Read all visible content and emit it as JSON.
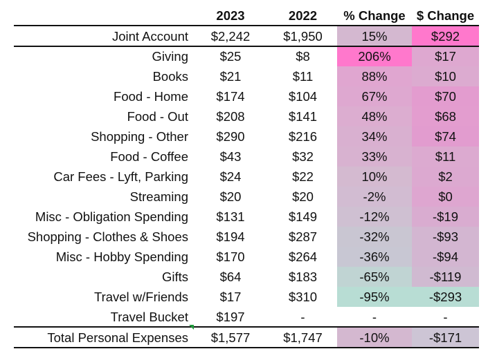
{
  "headers": {
    "y2023": "2023",
    "y2022": "2022",
    "pct": "% Change",
    "dollar": "$ Change"
  },
  "rows": [
    {
      "label": "Joint Account",
      "y2023": "$2,242",
      "y2022": "$1,950",
      "pct": "15%",
      "dollar": "$292",
      "pct_color": "#d4b8d0",
      "dollar_color": "#ff78cc"
    },
    {
      "label": "Giving",
      "y2023": "$25",
      "y2022": "$8",
      "pct": "206%",
      "dollar": "$17",
      "pct_color": "#ff78cc",
      "dollar_color": "#dea8d0"
    },
    {
      "label": "Books",
      "y2023": "$21",
      "y2022": "$11",
      "pct": "88%",
      "dollar": "$10",
      "pct_color": "#e0a6d0",
      "dollar_color": "#dcabd0"
    },
    {
      "label": "Food - Home",
      "y2023": "$174",
      "y2022": "$104",
      "pct": "67%",
      "dollar": "$70",
      "pct_color": "#dea8d0",
      "dollar_color": "#e39ccf"
    },
    {
      "label": "Food - Out",
      "y2023": "$208",
      "y2022": "$141",
      "pct": "48%",
      "dollar": "$68",
      "pct_color": "#dcadd0",
      "dollar_color": "#e39dcf"
    },
    {
      "label": "Shopping - Other",
      "y2023": "$290",
      "y2022": "$216",
      "pct": "34%",
      "dollar": "$74",
      "pct_color": "#d9b0d0",
      "dollar_color": "#e29ccf"
    },
    {
      "label": "Food - Coffee",
      "y2023": "$43",
      "y2022": "$32",
      "pct": "33%",
      "dollar": "$11",
      "pct_color": "#d8b2d0",
      "dollar_color": "#dcaad0"
    },
    {
      "label": "Car Fees - Lyft, Parking",
      "y2023": "$24",
      "y2022": "$22",
      "pct": "10%",
      "dollar": "$2",
      "pct_color": "#d4bad0",
      "dollar_color": "#dca9d0"
    },
    {
      "label": "Streaming",
      "y2023": "$20",
      "y2022": "$20",
      "pct": "-2%",
      "dollar": "$0",
      "pct_color": "#d2bcd2",
      "dollar_color": "#dea6d0"
    },
    {
      "label": "Misc - Obligation Spending",
      "y2023": "$131",
      "y2022": "$149",
      "pct": "-12%",
      "dollar": "-$19",
      "pct_color": "#cfc0d2",
      "dollar_color": "#d9acd0"
    },
    {
      "label": "Shopping - Clothes & Shoes",
      "y2023": "$194",
      "y2022": "$287",
      "pct": "-32%",
      "dollar": "-$93",
      "pct_color": "#c9c6d2",
      "dollar_color": "#d3b6d1"
    },
    {
      "label": "Misc - Hobby Spending",
      "y2023": "$170",
      "y2022": "$264",
      "pct": "-36%",
      "dollar": "-$94",
      "pct_color": "#c8c7d3",
      "dollar_color": "#d3b6d1"
    },
    {
      "label": "Gifts",
      "y2023": "$64",
      "y2022": "$183",
      "pct": "-65%",
      "dollar": "-$119",
      "pct_color": "#c0d4d3",
      "dollar_color": "#d0bad1"
    },
    {
      "label": "Travel w/Friends",
      "y2023": "$17",
      "y2022": "$310",
      "pct": "-95%",
      "dollar": "-$293",
      "pct_color": "#b8ddd4",
      "dollar_color": "#b8ddd4"
    },
    {
      "label": "Travel Bucket",
      "y2023": "$197",
      "y2022": "-",
      "pct": "-",
      "dollar": "-",
      "pct_color": "#ffffff",
      "dollar_color": "#ffffff"
    },
    {
      "label": "Total Personal Expenses",
      "y2023": "$1,577",
      "y2022": "$1,747",
      "pct": "-10%",
      "dollar": "-$171",
      "pct_color": "#d4b8d0",
      "dollar_color": "#cdc5d5"
    }
  ]
}
